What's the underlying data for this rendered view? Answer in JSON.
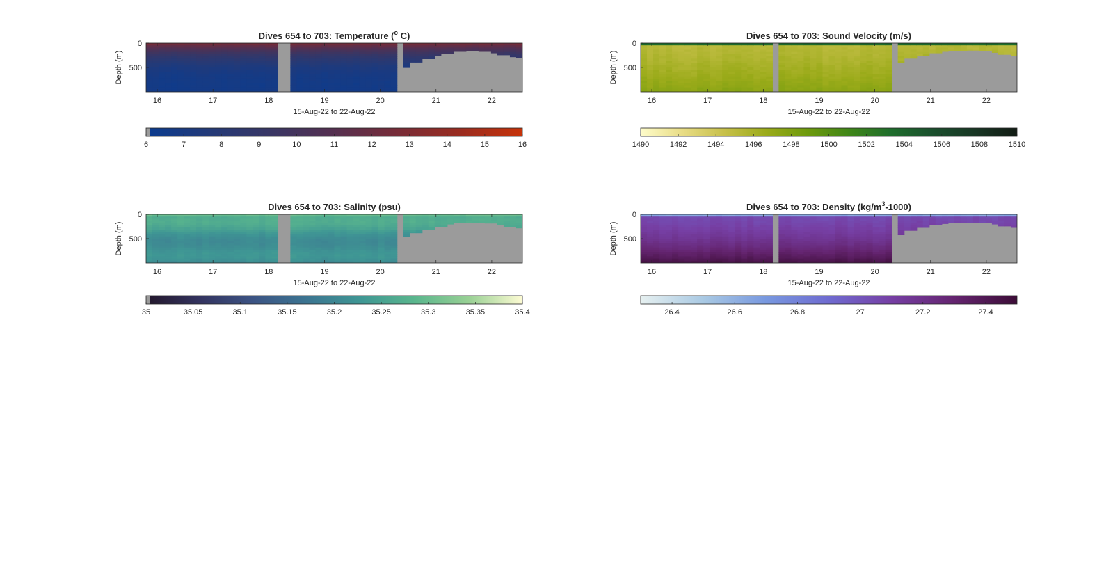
{
  "figure": {
    "background": "#ffffff",
    "nodata_color": "#9b9b9b"
  },
  "chart_data": [
    {
      "type": "heatmap",
      "title_main": "Dives 654 to 703: Temperature (",
      "title_sup": "o",
      "title_tail": " C)",
      "xlabel": "15-Aug-22 to 22-Aug-22",
      "ylabel": "Depth (m)",
      "x_ticks": [
        "16",
        "17",
        "18",
        "19",
        "20",
        "21",
        "22"
      ],
      "x_tick_values": [
        16,
        17,
        18,
        19,
        20,
        21,
        22
      ],
      "xlim": [
        15.8,
        22.55
      ],
      "y_ticks": [
        "0",
        "500"
      ],
      "y_tick_values": [
        0,
        500
      ],
      "ylim": [
        0,
        1000
      ],
      "field": "temperature",
      "surface_value": 12.8,
      "deep_value": 6.6,
      "gaps": [
        [
          18.2,
          18.35
        ],
        [
          20.28,
          20.4
        ]
      ],
      "late_bottom": [
        [
          20.4,
          500
        ],
        [
          20.55,
          390
        ],
        [
          20.75,
          320
        ],
        [
          20.95,
          260
        ],
        [
          21.1,
          210
        ],
        [
          21.3,
          170
        ],
        [
          21.55,
          160
        ],
        [
          21.75,
          170
        ],
        [
          21.95,
          200
        ],
        [
          22.15,
          240
        ],
        [
          22.3,
          280
        ],
        [
          22.45,
          300
        ],
        [
          22.55,
          300
        ]
      ],
      "colorbar": {
        "ticks": [
          "6",
          "7",
          "8",
          "9",
          "10",
          "11",
          "12",
          "13",
          "14",
          "15",
          "16"
        ],
        "tick_values": [
          6,
          7,
          8,
          9,
          10,
          11,
          12,
          13,
          14,
          15,
          16
        ],
        "range": [
          6,
          16
        ],
        "colors": [
          "#0a3b8f",
          "#233a78",
          "#393664",
          "#553050",
          "#772c38",
          "#9a2c20",
          "#c63309"
        ]
      }
    },
    {
      "type": "heatmap",
      "title_main": "Dives 654 to 703: Sound Velocity (m/s)",
      "title_sup": "",
      "title_tail": "",
      "xlabel": "15-Aug-22 to 22-Aug-22",
      "ylabel": "Depth (m)",
      "x_ticks": [
        "16",
        "17",
        "18",
        "19",
        "20",
        "21",
        "22"
      ],
      "x_tick_values": [
        16,
        17,
        18,
        19,
        20,
        21,
        22
      ],
      "xlim": [
        15.8,
        22.55
      ],
      "y_ticks": [
        "0",
        "500"
      ],
      "y_tick_values": [
        0,
        500
      ],
      "ylim": [
        0,
        1000
      ],
      "field": "sound_velocity",
      "surface_value": 1503.5,
      "deep_value": 1497.5,
      "gaps": [
        [
          18.2,
          18.33
        ],
        [
          20.28,
          20.42
        ]
      ],
      "late_bottom": [
        [
          20.42,
          400
        ],
        [
          20.55,
          310
        ],
        [
          20.75,
          250
        ],
        [
          20.95,
          200
        ],
        [
          21.15,
          170
        ],
        [
          21.35,
          150
        ],
        [
          21.6,
          145
        ],
        [
          21.85,
          160
        ],
        [
          22.05,
          190
        ],
        [
          22.25,
          230
        ],
        [
          22.4,
          260
        ],
        [
          22.55,
          270
        ]
      ],
      "colorbar": {
        "ticks": [
          "1490",
          "1492",
          "1494",
          "1496",
          "1498",
          "1500",
          "1502",
          "1504",
          "1506",
          "1508",
          "1510"
        ],
        "tick_values": [
          1490,
          1492,
          1494,
          1496,
          1498,
          1500,
          1502,
          1504,
          1506,
          1508,
          1510
        ],
        "range": [
          1490,
          1510
        ],
        "colors": [
          "#fefcca",
          "#e8dc85",
          "#c7c04a",
          "#9bab1a",
          "#6d9a0d",
          "#3f8618",
          "#1e6d2c",
          "#1a4f2d",
          "#183624",
          "#121c14"
        ]
      }
    },
    {
      "type": "heatmap",
      "title_main": "Dives 654 to 703: Salinity (psu)",
      "title_sup": "",
      "title_tail": "",
      "xlabel": "15-Aug-22 to 22-Aug-22",
      "ylabel": "Depth (m)",
      "x_ticks": [
        "16",
        "17",
        "18",
        "19",
        "20",
        "21",
        "22"
      ],
      "x_tick_values": [
        16,
        17,
        18,
        19,
        20,
        21,
        22
      ],
      "xlim": [
        15.8,
        22.55
      ],
      "y_ticks": [
        "0",
        "500"
      ],
      "y_tick_values": [
        0,
        500
      ],
      "ylim": [
        0,
        1000
      ],
      "field": "salinity",
      "surface_value": 35.3,
      "deep_value": 35.22,
      "gaps": [
        [
          18.2,
          18.35
        ],
        [
          20.28,
          20.4
        ]
      ],
      "late_bottom": [
        [
          20.4,
          460
        ],
        [
          20.55,
          380
        ],
        [
          20.75,
          310
        ],
        [
          20.95,
          250
        ],
        [
          21.15,
          200
        ],
        [
          21.35,
          170
        ],
        [
          21.6,
          165
        ],
        [
          21.85,
          180
        ],
        [
          22.05,
          210
        ],
        [
          22.25,
          250
        ],
        [
          22.4,
          280
        ],
        [
          22.55,
          290
        ]
      ],
      "colorbar": {
        "ticks": [
          "35",
          "35.05",
          "35.1",
          "35.15",
          "35.2",
          "35.25",
          "35.3",
          "35.35",
          "35.4"
        ],
        "tick_values": [
          35,
          35.05,
          35.1,
          35.15,
          35.2,
          35.25,
          35.3,
          35.35,
          35.4
        ],
        "range": [
          35,
          35.4
        ],
        "colors": [
          "#23172b",
          "#33335f",
          "#3c5484",
          "#3c7591",
          "#3f9794",
          "#5ab68d",
          "#98d094",
          "#fdfbd3"
        ]
      }
    },
    {
      "type": "heatmap",
      "title_main": "Dives 654 to 703: Density (kg/m",
      "title_sup": "3",
      "title_tail": "-1000)",
      "xlabel": "15-Aug-22 to 22-Aug-22",
      "ylabel": "Depth (m)",
      "x_ticks": [
        "16",
        "17",
        "18",
        "19",
        "20",
        "21",
        "22"
      ],
      "x_tick_values": [
        16,
        17,
        18,
        19,
        20,
        21,
        22
      ],
      "xlim": [
        15.8,
        22.55
      ],
      "y_ticks": [
        "0",
        "500"
      ],
      "y_tick_values": [
        0,
        500
      ],
      "ylim": [
        0,
        1000
      ],
      "field": "density",
      "surface_value": 26.8,
      "deep_value": 27.45,
      "gaps": [
        [
          18.2,
          18.33
        ],
        [
          20.28,
          20.4
        ]
      ],
      "late_bottom": [
        [
          20.4,
          420
        ],
        [
          20.55,
          330
        ],
        [
          20.75,
          270
        ],
        [
          20.95,
          220
        ],
        [
          21.15,
          190
        ],
        [
          21.35,
          170
        ],
        [
          21.6,
          165
        ],
        [
          21.85,
          175
        ],
        [
          22.05,
          200
        ],
        [
          22.25,
          240
        ],
        [
          22.4,
          270
        ],
        [
          22.55,
          290
        ]
      ],
      "colorbar": {
        "ticks": [
          "26.4",
          "26.6",
          "26.8",
          "27",
          "27.2",
          "27.4"
        ],
        "tick_values": [
          26.4,
          26.6,
          26.8,
          27,
          27.2,
          27.4
        ],
        "range": [
          26.3,
          27.5
        ],
        "colors": [
          "#e6f0f0",
          "#a9c9e3",
          "#7898df",
          "#6f6bd0",
          "#763fa4",
          "#64246f",
          "#3c0d37"
        ]
      }
    }
  ]
}
